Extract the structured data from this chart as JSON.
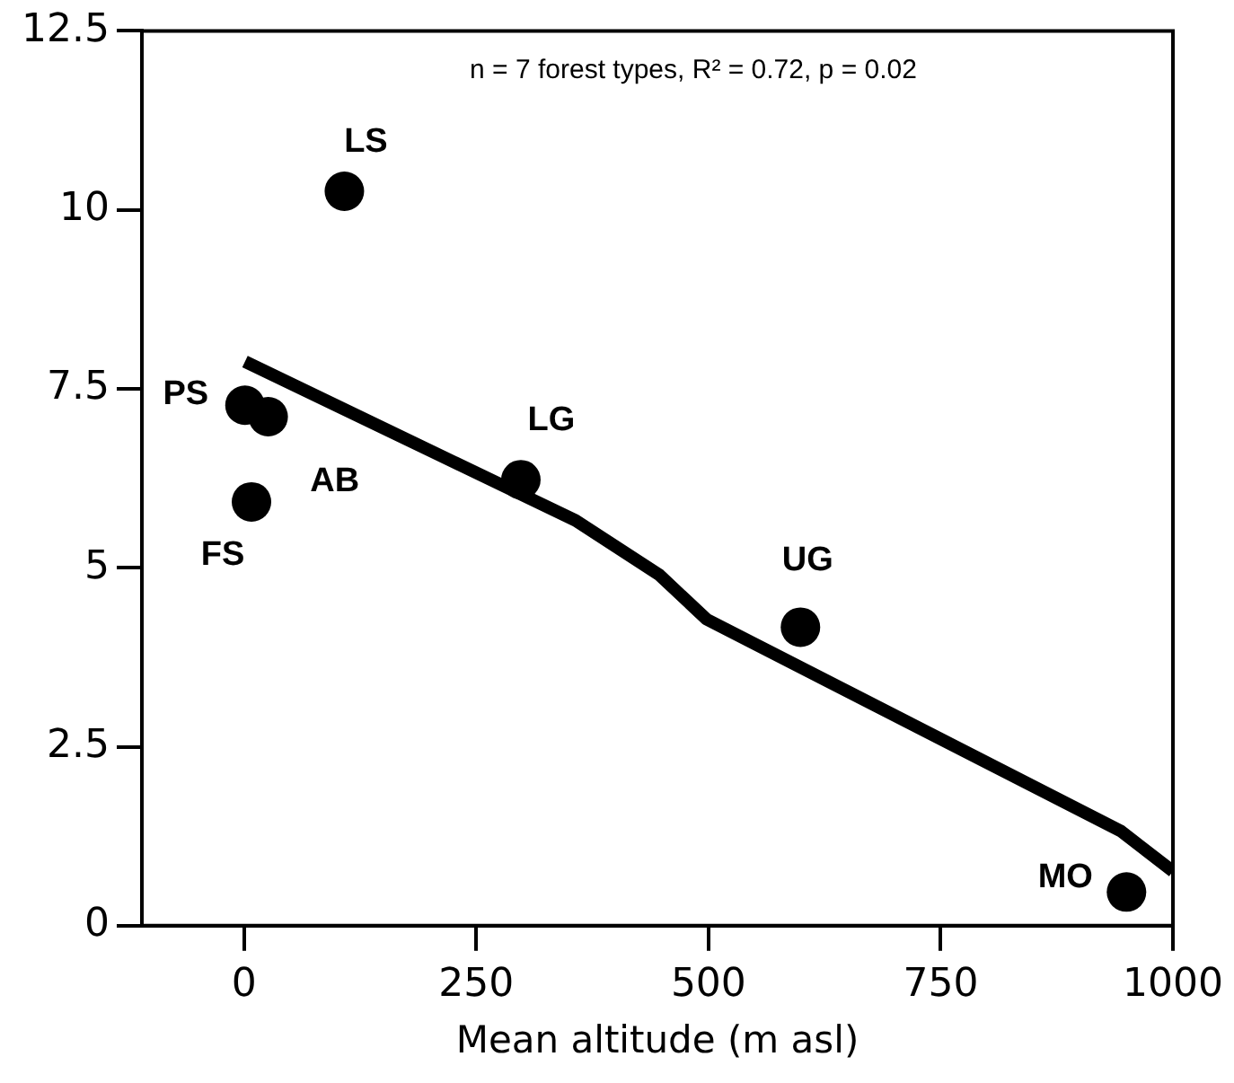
{
  "chart_data": {
    "type": "scatter",
    "xlabel": "Mean altitude (m asl)",
    "xlim": [
      -110,
      1000
    ],
    "xticks": [
      0,
      250,
      500,
      750,
      1000
    ],
    "ylim": [
      0,
      12.5
    ],
    "yticks": [
      0,
      2.5,
      5,
      7.5,
      10,
      12.5
    ],
    "grid": false,
    "legend": false,
    "marker": "circle",
    "series": [
      {
        "color": "#000000",
        "x": [
          108,
          1,
          26,
          8,
          298,
          599,
          950
        ],
        "values": [
          10.26,
          7.27,
          7.11,
          5.92,
          6.23,
          4.17,
          0.47
        ]
      },
      {
        "type": "line",
        "color": "#000000",
        "marker": "none",
        "line_style": "solid",
        "x": [
          1,
          357,
          447,
          498,
          944,
          1000
        ],
        "values": [
          7.88,
          5.66,
          4.9,
          4.28,
          1.32,
          0.76
        ]
      }
    ],
    "annotations": [
      "n = 7 forest types, R² = 0.72, p = 0.02",
      {
        "text": "LS",
        "x": 108,
        "y": 10.26
      },
      {
        "text": "PS",
        "x": 1,
        "y": 7.27
      },
      {
        "text": "AB",
        "x": 26,
        "y": 7.11
      },
      {
        "text": "FS",
        "x": 8,
        "y": 5.92
      },
      {
        "text": "LG",
        "x": 298,
        "y": 6.23
      },
      {
        "text": "UG",
        "x": 599,
        "y": 4.17
      },
      {
        "text": "MO",
        "x": 950,
        "y": 0.47
      }
    ]
  }
}
